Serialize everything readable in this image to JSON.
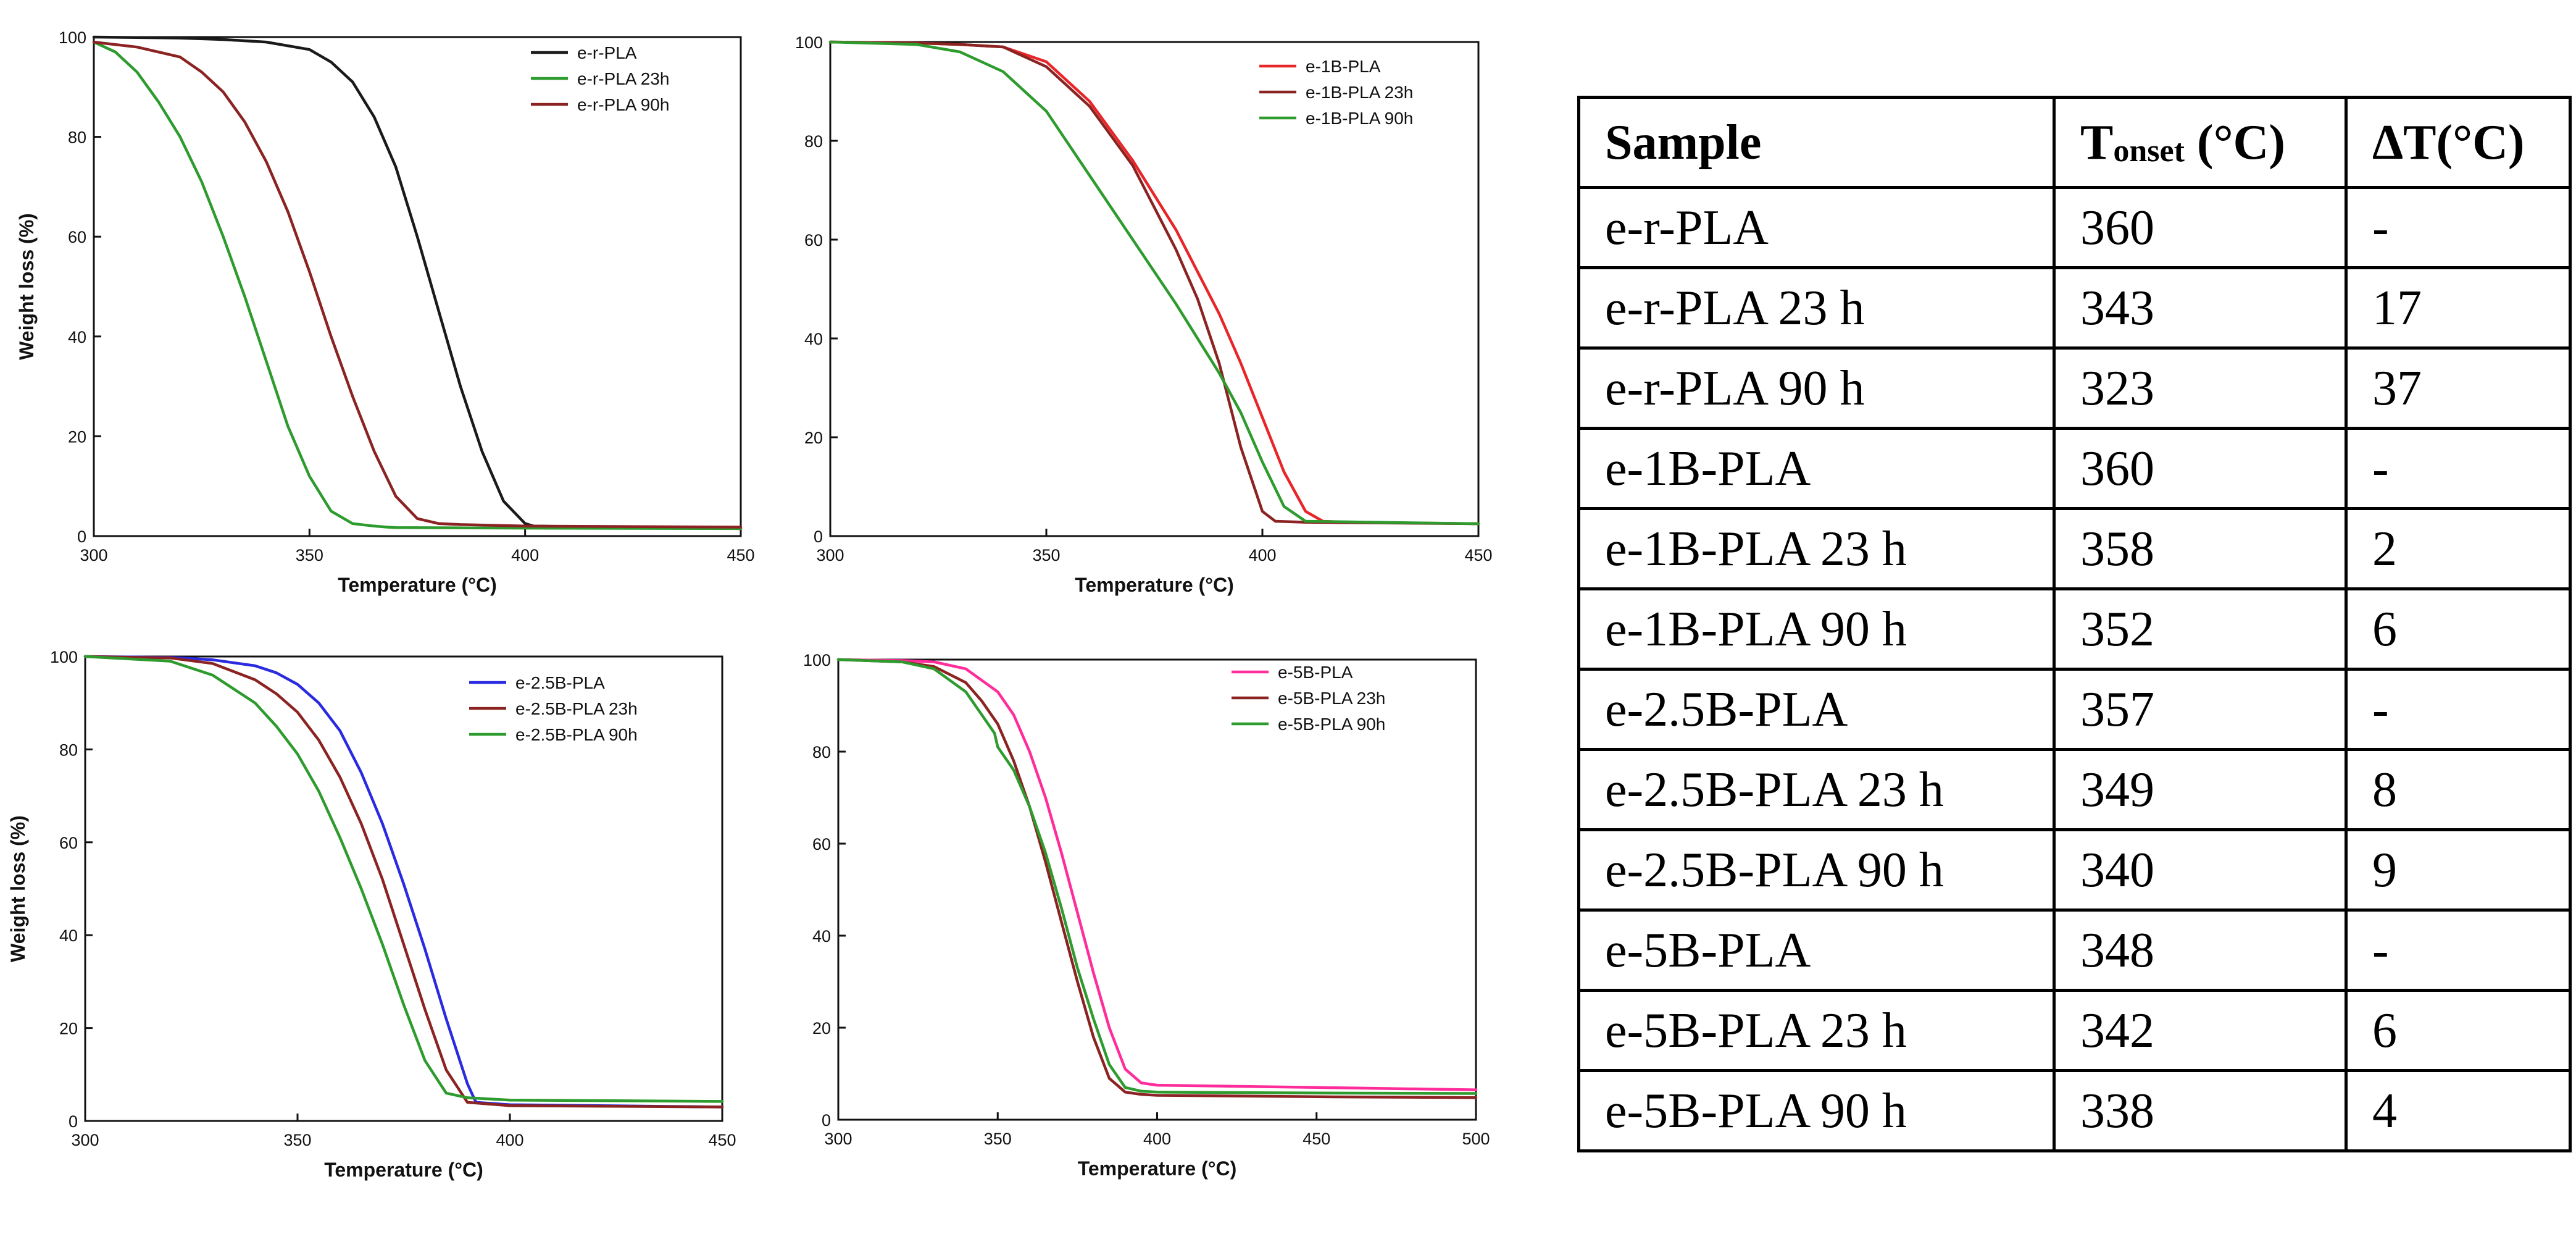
{
  "chart_data": [
    {
      "type": "line",
      "id": "panel-1",
      "xlabel": "Temperature (°C)",
      "ylabel": "Weight loss (%)",
      "xlim": [
        300,
        450
      ],
      "ylim": [
        0,
        100
      ],
      "xticks": [
        300,
        350,
        400,
        450
      ],
      "yticks": [
        0,
        20,
        40,
        60,
        80,
        100
      ],
      "legend_position": "top-right",
      "series": [
        {
          "name": "e-r-PLA",
          "color": "#1a1a1a",
          "x": [
            300,
            320,
            330,
            340,
            350,
            355,
            360,
            365,
            370,
            375,
            380,
            385,
            390,
            395,
            400,
            402,
            420,
            450
          ],
          "y": [
            100,
            99.8,
            99.5,
            99,
            97.5,
            95,
            91,
            84,
            74,
            60,
            45,
            30,
            17,
            7,
            2.5,
            2,
            1.8,
            1.5
          ]
        },
        {
          "name": "e-r-PLA 23h",
          "color": "#2e9b2e",
          "x": [
            300,
            305,
            310,
            315,
            320,
            325,
            330,
            335,
            340,
            345,
            350,
            355,
            360,
            365,
            368,
            370,
            400,
            450
          ],
          "y": [
            99,
            97,
            93,
            87,
            80,
            71,
            60,
            48,
            35,
            22,
            12,
            5,
            2.5,
            2,
            1.8,
            1.7,
            1.6,
            1.5
          ]
        },
        {
          "name": "e-r-PLA 90h",
          "color": "#8b2323",
          "x": [
            300,
            310,
            320,
            325,
            330,
            335,
            340,
            345,
            350,
            355,
            360,
            365,
            370,
            375,
            380,
            385,
            400,
            450
          ],
          "y": [
            99,
            98,
            96,
            93,
            89,
            83,
            75,
            65,
            53,
            40,
            28,
            17,
            8,
            3.5,
            2.5,
            2.3,
            2,
            1.8
          ]
        }
      ]
    },
    {
      "type": "line",
      "id": "panel-2",
      "xlabel": "Temperature (°C)",
      "ylabel": "",
      "xlim": [
        300,
        450
      ],
      "ylim": [
        0,
        100
      ],
      "xticks": [
        300,
        350,
        400,
        450
      ],
      "yticks": [
        0,
        20,
        40,
        60,
        80,
        100
      ],
      "legend_position": "top-right",
      "series": [
        {
          "name": "e-1B-PLA",
          "color": "#e8262a",
          "x": [
            300,
            320,
            330,
            340,
            350,
            360,
            370,
            380,
            390,
            395,
            400,
            405,
            410,
            414,
            420,
            450
          ],
          "y": [
            100,
            99.8,
            99.5,
            99,
            96,
            88,
            76,
            62,
            45,
            35,
            24,
            13,
            5,
            3,
            2.8,
            2.5
          ]
        },
        {
          "name": "e-1B-PLA 23h",
          "color": "#8b2323",
          "x": [
            300,
            320,
            330,
            340,
            350,
            360,
            370,
            380,
            385,
            390,
            395,
            400,
            403,
            410,
            450
          ],
          "y": [
            100,
            99.8,
            99.5,
            99,
            95,
            87,
            75,
            58,
            48,
            35,
            18,
            5,
            3,
            2.8,
            2.5
          ]
        },
        {
          "name": "e-1B-PLA 90h",
          "color": "#2e9b2e",
          "x": [
            300,
            320,
            330,
            340,
            350,
            360,
            370,
            380,
            390,
            395,
            400,
            405,
            410,
            450
          ],
          "y": [
            100,
            99.5,
            98,
            94,
            86,
            73,
            60,
            47,
            33,
            25,
            15,
            6,
            3,
            2.5
          ]
        }
      ]
    },
    {
      "type": "line",
      "id": "panel-3",
      "xlabel": "Temperature (°C)",
      "ylabel": "Weight loss (%)",
      "xlim": [
        300,
        450
      ],
      "ylim": [
        0,
        100
      ],
      "xticks": [
        300,
        350,
        400,
        450
      ],
      "yticks": [
        0,
        20,
        40,
        60,
        80,
        100
      ],
      "legend_position": "top-right",
      "series": [
        {
          "name": "e-2.5B-PLA",
          "color": "#2a2ae0",
          "x": [
            300,
            320,
            330,
            340,
            345,
            350,
            355,
            360,
            365,
            370,
            375,
            380,
            385,
            390,
            392,
            400,
            450
          ],
          "y": [
            100,
            99.8,
            99.3,
            98,
            96.5,
            94,
            90,
            84,
            75,
            64,
            51,
            37,
            22,
            8,
            4,
            3.5,
            3
          ]
        },
        {
          "name": "e-2.5B-PLA 23h",
          "color": "#8b2323",
          "x": [
            300,
            320,
            330,
            340,
            345,
            350,
            355,
            360,
            365,
            370,
            375,
            380,
            385,
            390,
            400,
            450
          ],
          "y": [
            100,
            99.7,
            98.5,
            95,
            92,
            88,
            82,
            74,
            64,
            52,
            38,
            24,
            11,
            4,
            3.3,
            3
          ]
        },
        {
          "name": "e-2.5B-PLA 90h",
          "color": "#2e9b2e",
          "x": [
            300,
            320,
            330,
            340,
            345,
            350,
            355,
            360,
            365,
            370,
            375,
            380,
            385,
            390,
            400,
            450
          ],
          "y": [
            100,
            99,
            96,
            90,
            85,
            79,
            71,
            61,
            50,
            38,
            25,
            13,
            6,
            5,
            4.5,
            4.2
          ]
        }
      ]
    },
    {
      "type": "line",
      "id": "panel-4",
      "xlabel": "Temperature (°C)",
      "ylabel": "",
      "xlim": [
        300,
        500
      ],
      "ylim": [
        0,
        100
      ],
      "xticks": [
        300,
        350,
        400,
        450,
        500
      ],
      "yticks": [
        0,
        20,
        40,
        60,
        80,
        100
      ],
      "legend_position": "top-right",
      "series": [
        {
          "name": "e-5B-PLA",
          "color": "#ff2d9b",
          "x": [
            300,
            320,
            330,
            340,
            350,
            355,
            360,
            365,
            370,
            375,
            380,
            385,
            390,
            395,
            400,
            450,
            500
          ],
          "y": [
            100,
            99.8,
            99.5,
            98,
            93,
            88,
            80,
            70,
            58,
            45,
            32,
            20,
            11,
            8,
            7.5,
            7,
            6.5
          ]
        },
        {
          "name": "e-5B-PLA 23h",
          "color": "#8b2323",
          "x": [
            300,
            320,
            330,
            340,
            345,
            350,
            355,
            360,
            365,
            370,
            375,
            380,
            385,
            390,
            395,
            400,
            450,
            500
          ],
          "y": [
            100,
            99.5,
            98.5,
            95,
            91,
            86,
            78,
            68,
            56,
            43,
            30,
            18,
            9,
            6,
            5.5,
            5.3,
            5,
            4.8
          ]
        },
        {
          "name": "e-5B-PLA 90h",
          "color": "#2e9b2e",
          "x": [
            300,
            320,
            330,
            340,
            345,
            349,
            350,
            355,
            360,
            365,
            370,
            375,
            380,
            385,
            390,
            395,
            400,
            450,
            500
          ],
          "y": [
            100,
            99.5,
            98,
            93,
            88,
            84,
            81,
            76,
            68,
            58,
            46,
            33,
            22,
            12,
            7,
            6.2,
            6,
            5.8,
            5.7
          ]
        }
      ]
    }
  ],
  "table": {
    "headers": {
      "sample": "Sample",
      "tonset_main": "T",
      "tonset_sub": "onset",
      "tonset_unit": " (°C)",
      "delta": "ΔT(°C)"
    },
    "rows": [
      {
        "sample": "e-r-PLA",
        "tonset": "360",
        "delta": "-"
      },
      {
        "sample": "e-r-PLA 23 h",
        "tonset": "343",
        "delta": "17"
      },
      {
        "sample": "e-r-PLA 90 h",
        "tonset": "323",
        "delta": "37"
      },
      {
        "sample": "e-1B-PLA",
        "tonset": "360",
        "delta": "-"
      },
      {
        "sample": "e-1B-PLA 23 h",
        "tonset": "358",
        "delta": "2"
      },
      {
        "sample": "e-1B-PLA 90 h",
        "tonset": "352",
        "delta": "6"
      },
      {
        "sample": "e-2.5B-PLA",
        "tonset": "357",
        "delta": "-"
      },
      {
        "sample": "e-2.5B-PLA 23 h",
        "tonset": "349",
        "delta": "8"
      },
      {
        "sample": "e-2.5B-PLA 90 h",
        "tonset": "340",
        "delta": "9"
      },
      {
        "sample": "e-5B-PLA",
        "tonset": "348",
        "delta": "-"
      },
      {
        "sample": "e-5B-PLA 23 h",
        "tonset": "342",
        "delta": "6"
      },
      {
        "sample": "e-5B-PLA 90 h",
        "tonset": "338",
        "delta": "4"
      }
    ]
  }
}
